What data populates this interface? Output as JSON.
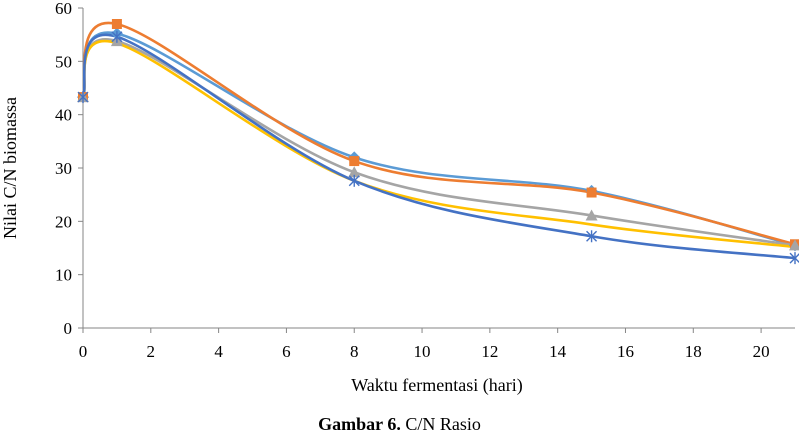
{
  "caption": {
    "label": "Gambar 6.",
    "text": " C/N Rasio"
  },
  "chart_data": {
    "type": "line",
    "title": "",
    "xlabel": "Waktu fermentasi (hari)",
    "ylabel": "Nilai C/N biomassa",
    "xlim": [
      0,
      21
    ],
    "ylim": [
      0,
      60
    ],
    "xticks": [
      0,
      2,
      4,
      6,
      8,
      10,
      12,
      14,
      16,
      18,
      20
    ],
    "yticks": [
      0,
      10,
      20,
      30,
      40,
      50,
      60
    ],
    "grid": false,
    "legend": "none",
    "x": [
      0,
      1,
      8,
      15,
      21
    ],
    "series": [
      {
        "color": "#5B9BD5",
        "marker": "diamond",
        "values": [
          43.3,
          55.2,
          32.0,
          25.7,
          15.5
        ]
      },
      {
        "color": "#ED7D31",
        "marker": "square",
        "values": [
          43.3,
          57.0,
          31.3,
          25.4,
          15.7
        ]
      },
      {
        "color": "#A5A5A5",
        "marker": "triangle",
        "values": [
          43.3,
          53.8,
          29.2,
          21.1,
          15.5
        ]
      },
      {
        "color": "#FFC000",
        "marker": "none",
        "values": [
          43.3,
          53.4,
          27.6,
          19.4,
          15.2
        ]
      },
      {
        "color": "#4472C4",
        "marker": "star",
        "values": [
          43.3,
          54.6,
          27.6,
          17.2,
          13.1
        ]
      }
    ]
  }
}
